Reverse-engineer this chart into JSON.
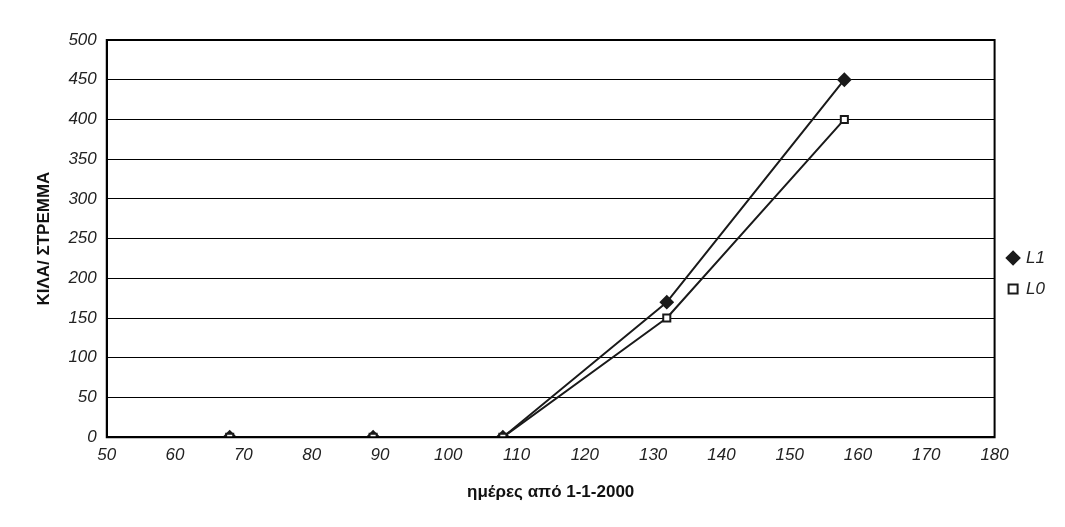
{
  "chart_data": {
    "type": "line",
    "xlabel": "ημέρες από 1-1-2000",
    "ylabel": "ΚΙΛΑ/ ΣΤΡΕΜΜΑ",
    "x": [
      68,
      89,
      108,
      132,
      158
    ],
    "series": [
      {
        "name": "L1",
        "color": "#1a1a1a",
        "marker": "diamond",
        "values": [
          0,
          0,
          0,
          170,
          450
        ]
      },
      {
        "name": "L0",
        "color": "#1a1a1a",
        "marker": "square",
        "values": [
          0,
          0,
          0,
          150,
          400
        ]
      }
    ],
    "xlim": [
      50,
      180
    ],
    "xticks": [
      50,
      60,
      70,
      80,
      90,
      100,
      110,
      120,
      130,
      140,
      150,
      160,
      170,
      180
    ],
    "ylim": [
      0,
      500
    ],
    "yticks": [
      0,
      50,
      100,
      150,
      200,
      250,
      300,
      350,
      400,
      450,
      500
    ],
    "grid": "y",
    "legend": "right",
    "line_style": "solid"
  }
}
